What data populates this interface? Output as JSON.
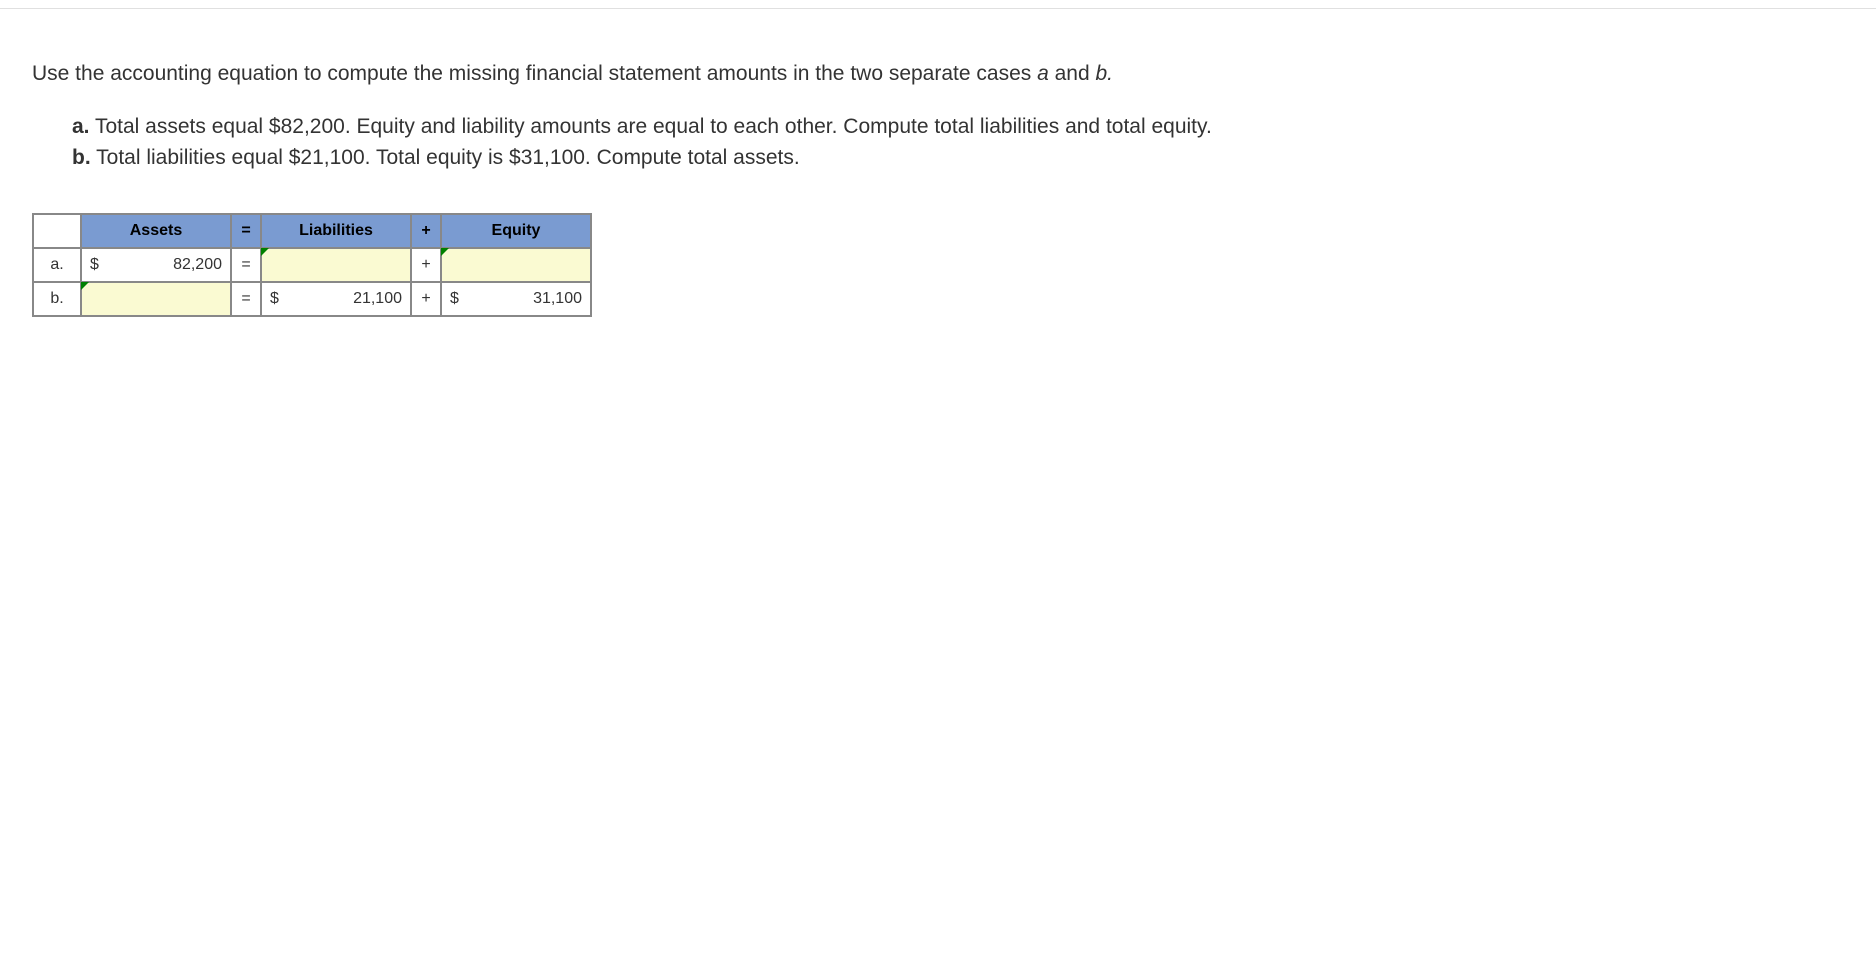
{
  "intro": "Use the accounting equation to compute the missing financial statement amounts in the two separate cases ",
  "intro_italic_a": "a",
  "intro_and": " and ",
  "intro_italic_b": "b.",
  "problems": {
    "a": {
      "label": "a.",
      "text": "Total assets equal $82,200. Equity and liability amounts are equal to each other. Compute total liabilities and total equity."
    },
    "b": {
      "label": "b.",
      "text": "Total liabilities equal $21,100. Total equity is $31,100. Compute total assets."
    }
  },
  "table": {
    "headers": {
      "assets": "Assets",
      "eq": "=",
      "liabilities": "Liabilities",
      "plus": "+",
      "equity": "Equity"
    },
    "rows": [
      {
        "label": "a.",
        "assets": {
          "cur": "$",
          "val": "82,200",
          "input": false
        },
        "eq": "=",
        "liabilities": {
          "cur": "",
          "val": "",
          "input": true
        },
        "plus": "+",
        "equity": {
          "cur": "",
          "val": "",
          "input": true
        }
      },
      {
        "label": "b.",
        "assets": {
          "cur": "",
          "val": "",
          "input": true
        },
        "eq": "=",
        "liabilities": {
          "cur": "$",
          "val": "21,100",
          "input": false
        },
        "plus": "+",
        "equity": {
          "cur": "$",
          "val": "31,100",
          "input": false
        }
      }
    ]
  },
  "colors": {
    "header_bg": "#7a9bd1",
    "input_bg": "#fafad2",
    "border": "#888888",
    "text": "#333333",
    "triangle": "#008000"
  }
}
